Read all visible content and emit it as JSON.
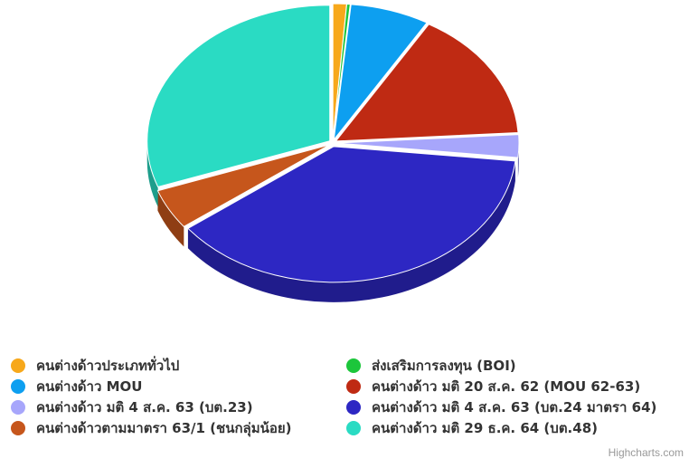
{
  "chart_data": {
    "type": "pie",
    "title": "",
    "series": [
      {
        "points": [
          {
            "name": "คนต่างด้าวประเภททั่วไป",
            "value": 1.2,
            "color": "#f7a81b"
          },
          {
            "name": "ส่งเสริมการลงทุน (BOI)",
            "value": 0.3,
            "color": "#1cc63b"
          },
          {
            "name": "คนต่างด้าว MOU",
            "value": 7.0,
            "color": "#0d9ff0"
          },
          {
            "name": "คนต่างด้าว มติ 20 ส.ค. 62 (MOU 62-63)",
            "value": 15.5,
            "color": "#bf2a13"
          },
          {
            "name": "คนต่างด้าว มติ 4 ส.ค. 63 (บต.23)",
            "value": 2.7,
            "color": "#a7a6fb"
          },
          {
            "name": "คนต่างด้าว มติ 4 ส.ค. 63 (บต.24 มาตรา 64)",
            "value": 38.0,
            "color": "#2d27c3"
          },
          {
            "name": "คนต่างด้าวตามมาตรา 63/1 (ชนกลุ่มน้อย)",
            "value": 4.8,
            "color": "#c6561c"
          },
          {
            "name": "คนต่างด้าว มติ 29 ธ.ค. 64 (บต.48)",
            "value": 30.5,
            "color": "#2adbc3"
          }
        ]
      }
    ],
    "legend": {
      "placement": "bottom",
      "columns": 2,
      "items": [
        {
          "label": "คนต่างด้าวประเภททั่วไป",
          "color": "#f7a81b"
        },
        {
          "label": "ส่งเสริมการลงทุน (BOI)",
          "color": "#1cc63b"
        },
        {
          "label": "คนต่างด้าว MOU",
          "color": "#0d9ff0"
        },
        {
          "label": "คนต่างด้าว มติ 20 ส.ค. 62 (MOU 62-63)",
          "color": "#bf2a13"
        },
        {
          "label": "คนต่างด้าว มติ 4 ส.ค. 63 (บต.23)",
          "color": "#a7a6fb"
        },
        {
          "label": "คนต่างด้าว มติ 4 ส.ค. 63 (บต.24 มาตรา 64)",
          "color": "#2d27c3"
        },
        {
          "label": "คนต่างด้าวตามมาตรา 63/1 (ชนกลุ่มน้อย)",
          "color": "#c6561c"
        },
        {
          "label": "คนต่างด้าว มติ 29 ธ.ค. 64 (บต.48)",
          "color": "#2adbc3"
        }
      ]
    }
  },
  "credits": "Highcharts.com"
}
